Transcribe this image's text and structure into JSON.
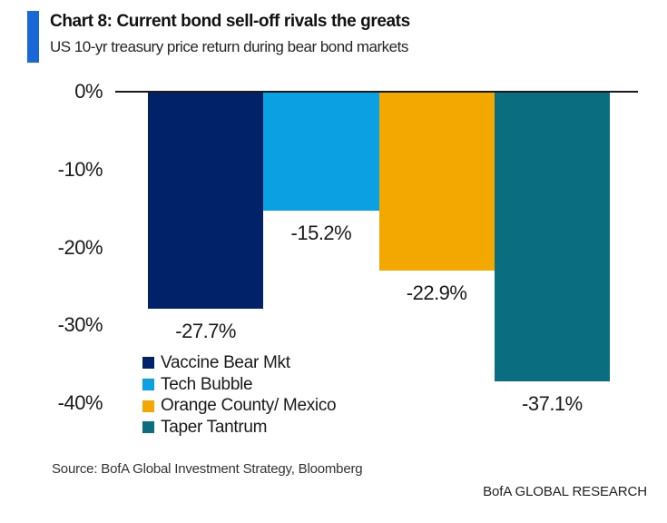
{
  "header": {
    "title": "Chart 8: Current bond sell-off rivals the greats",
    "subtitle": "US 10-yr treasury price return during bear bond markets",
    "accent_color": "#1a68d6"
  },
  "chart_data": {
    "type": "bar",
    "title": "Chart 8: Current bond sell-off rivals the greats",
    "subtitle": "US 10-yr treasury price return during bear bond markets",
    "categories": [
      "Vaccine Bear Mkt",
      "Tech Bubble",
      "Orange County/ Mexico",
      "Taper Tantrum"
    ],
    "values": [
      -27.7,
      -15.2,
      -22.9,
      -37.1
    ],
    "data_labels": [
      "-27.7%",
      "-15.2%",
      "-22.9%",
      "-37.1%"
    ],
    "bar_colors": [
      "#012169",
      "#0aa0e2",
      "#f2a800",
      "#0a6e80"
    ],
    "xlabel": "",
    "ylabel": "",
    "ylim": [
      -40,
      0
    ],
    "y_ticks": [
      0,
      -10,
      -20,
      -30,
      -40
    ],
    "y_tick_labels": [
      "0%",
      "-10%",
      "-20%",
      "-30%",
      "-40%"
    ],
    "grid": false,
    "bar_orientation": "vertical-negative",
    "legend_position": "inside-lower-left",
    "legend": [
      {
        "label": "Vaccine Bear Mkt",
        "color": "#012169"
      },
      {
        "label": "Tech Bubble",
        "color": "#0aa0e2"
      },
      {
        "label": "Orange County/ Mexico",
        "color": "#f2a800"
      },
      {
        "label": "Taper Tantrum",
        "color": "#0a6e80"
      }
    ]
  },
  "footer": {
    "source": "Source: BofA Global Investment Strategy, Bloomberg",
    "brand": "BofA GLOBAL RESEARCH"
  }
}
